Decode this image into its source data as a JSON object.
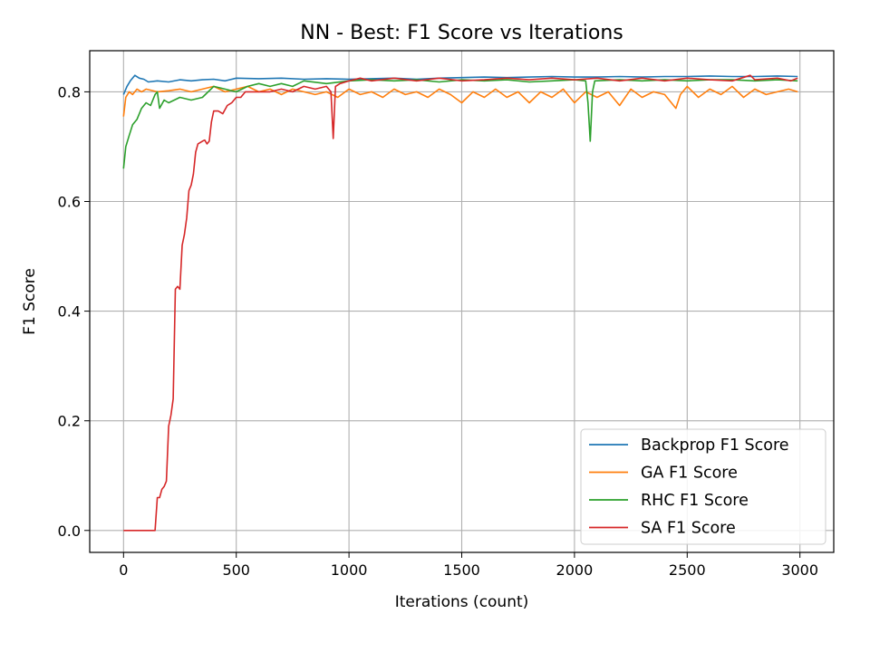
{
  "chart_data": {
    "type": "line",
    "title": "NN - Best: F1 Score vs Iterations",
    "xlabel": "Iterations (count)",
    "ylabel": "F1 Score",
    "xlim": [
      -150,
      3150
    ],
    "ylim": [
      -0.04,
      0.875
    ],
    "xticks": [
      0,
      500,
      1000,
      1500,
      2000,
      2500,
      3000
    ],
    "yticks": [
      0.0,
      0.2,
      0.4,
      0.6,
      0.8
    ],
    "xtick_labels": [
      "0",
      "500",
      "1000",
      "1500",
      "2000",
      "2500",
      "3000"
    ],
    "ytick_labels": [
      "0.0",
      "0.2",
      "0.4",
      "0.6",
      "0.8"
    ],
    "grid": true,
    "legend_position": "lower-right",
    "series": [
      {
        "name": "Backprop F1 Score",
        "color": "#1f77b4",
        "points": [
          [
            0,
            0.795
          ],
          [
            15,
            0.81
          ],
          [
            30,
            0.82
          ],
          [
            50,
            0.83
          ],
          [
            70,
            0.825
          ],
          [
            90,
            0.823
          ],
          [
            110,
            0.818
          ],
          [
            150,
            0.82
          ],
          [
            200,
            0.818
          ],
          [
            250,
            0.822
          ],
          [
            300,
            0.82
          ],
          [
            350,
            0.822
          ],
          [
            400,
            0.823
          ],
          [
            450,
            0.82
          ],
          [
            500,
            0.825
          ],
          [
            600,
            0.824
          ],
          [
            700,
            0.825
          ],
          [
            800,
            0.823
          ],
          [
            900,
            0.824
          ],
          [
            1000,
            0.823
          ],
          [
            1100,
            0.824
          ],
          [
            1200,
            0.825
          ],
          [
            1300,
            0.823
          ],
          [
            1400,
            0.825
          ],
          [
            1500,
            0.826
          ],
          [
            1600,
            0.827
          ],
          [
            1700,
            0.826
          ],
          [
            1800,
            0.827
          ],
          [
            1900,
            0.828
          ],
          [
            2000,
            0.827
          ],
          [
            2100,
            0.827
          ],
          [
            2200,
            0.828
          ],
          [
            2300,
            0.827
          ],
          [
            2400,
            0.828
          ],
          [
            2500,
            0.828
          ],
          [
            2600,
            0.829
          ],
          [
            2700,
            0.828
          ],
          [
            2800,
            0.828
          ],
          [
            2900,
            0.829
          ],
          [
            2990,
            0.828
          ]
        ]
      },
      {
        "name": "GA F1 Score",
        "color": "#ff7f0e",
        "points": [
          [
            0,
            0.755
          ],
          [
            10,
            0.79
          ],
          [
            25,
            0.8
          ],
          [
            40,
            0.795
          ],
          [
            60,
            0.805
          ],
          [
            80,
            0.8
          ],
          [
            100,
            0.805
          ],
          [
            150,
            0.8
          ],
          [
            200,
            0.802
          ],
          [
            250,
            0.805
          ],
          [
            300,
            0.8
          ],
          [
            350,
            0.805
          ],
          [
            400,
            0.81
          ],
          [
            450,
            0.8
          ],
          [
            500,
            0.805
          ],
          [
            550,
            0.81
          ],
          [
            600,
            0.8
          ],
          [
            650,
            0.805
          ],
          [
            700,
            0.795
          ],
          [
            750,
            0.805
          ],
          [
            800,
            0.8
          ],
          [
            850,
            0.795
          ],
          [
            900,
            0.8
          ],
          [
            950,
            0.79
          ],
          [
            1000,
            0.805
          ],
          [
            1050,
            0.795
          ],
          [
            1100,
            0.8
          ],
          [
            1150,
            0.79
          ],
          [
            1200,
            0.805
          ],
          [
            1250,
            0.795
          ],
          [
            1300,
            0.8
          ],
          [
            1350,
            0.79
          ],
          [
            1400,
            0.805
          ],
          [
            1450,
            0.795
          ],
          [
            1500,
            0.78
          ],
          [
            1550,
            0.8
          ],
          [
            1600,
            0.79
          ],
          [
            1650,
            0.805
          ],
          [
            1700,
            0.79
          ],
          [
            1750,
            0.8
          ],
          [
            1800,
            0.78
          ],
          [
            1850,
            0.8
          ],
          [
            1900,
            0.79
          ],
          [
            1950,
            0.805
          ],
          [
            2000,
            0.78
          ],
          [
            2050,
            0.8
          ],
          [
            2100,
            0.79
          ],
          [
            2150,
            0.8
          ],
          [
            2200,
            0.775
          ],
          [
            2250,
            0.805
          ],
          [
            2300,
            0.79
          ],
          [
            2350,
            0.8
          ],
          [
            2400,
            0.795
          ],
          [
            2450,
            0.77
          ],
          [
            2470,
            0.795
          ],
          [
            2500,
            0.81
          ],
          [
            2550,
            0.79
          ],
          [
            2600,
            0.805
          ],
          [
            2650,
            0.795
          ],
          [
            2700,
            0.81
          ],
          [
            2750,
            0.79
          ],
          [
            2800,
            0.805
          ],
          [
            2850,
            0.795
          ],
          [
            2900,
            0.8
          ],
          [
            2950,
            0.805
          ],
          [
            2990,
            0.8
          ]
        ]
      },
      {
        "name": "RHC F1 Score",
        "color": "#2ca02c",
        "points": [
          [
            0,
            0.66
          ],
          [
            10,
            0.7
          ],
          [
            25,
            0.72
          ],
          [
            40,
            0.74
          ],
          [
            60,
            0.75
          ],
          [
            80,
            0.77
          ],
          [
            100,
            0.78
          ],
          [
            120,
            0.775
          ],
          [
            140,
            0.795
          ],
          [
            150,
            0.8
          ],
          [
            160,
            0.77
          ],
          [
            180,
            0.785
          ],
          [
            200,
            0.78
          ],
          [
            250,
            0.79
          ],
          [
            300,
            0.785
          ],
          [
            350,
            0.79
          ],
          [
            400,
            0.81
          ],
          [
            450,
            0.805
          ],
          [
            500,
            0.8
          ],
          [
            550,
            0.81
          ],
          [
            600,
            0.815
          ],
          [
            650,
            0.81
          ],
          [
            700,
            0.815
          ],
          [
            750,
            0.81
          ],
          [
            800,
            0.82
          ],
          [
            900,
            0.815
          ],
          [
            1000,
            0.82
          ],
          [
            1100,
            0.822
          ],
          [
            1200,
            0.82
          ],
          [
            1300,
            0.822
          ],
          [
            1400,
            0.818
          ],
          [
            1500,
            0.822
          ],
          [
            1600,
            0.82
          ],
          [
            1700,
            0.822
          ],
          [
            1800,
            0.818
          ],
          [
            1900,
            0.82
          ],
          [
            2000,
            0.822
          ],
          [
            2050,
            0.82
          ],
          [
            2060,
            0.78
          ],
          [
            2070,
            0.71
          ],
          [
            2080,
            0.8
          ],
          [
            2090,
            0.82
          ],
          [
            2200,
            0.822
          ],
          [
            2300,
            0.82
          ],
          [
            2400,
            0.822
          ],
          [
            2500,
            0.82
          ],
          [
            2600,
            0.822
          ],
          [
            2700,
            0.822
          ],
          [
            2800,
            0.82
          ],
          [
            2900,
            0.822
          ],
          [
            2990,
            0.82
          ]
        ]
      },
      {
        "name": "SA F1 Score",
        "color": "#d62728",
        "points": [
          [
            0,
            0.0
          ],
          [
            50,
            0.0
          ],
          [
            100,
            0.0
          ],
          [
            140,
            0.0
          ],
          [
            150,
            0.06
          ],
          [
            160,
            0.06
          ],
          [
            170,
            0.075
          ],
          [
            180,
            0.08
          ],
          [
            190,
            0.09
          ],
          [
            200,
            0.19
          ],
          [
            210,
            0.21
          ],
          [
            220,
            0.24
          ],
          [
            230,
            0.44
          ],
          [
            240,
            0.445
          ],
          [
            250,
            0.44
          ],
          [
            260,
            0.52
          ],
          [
            270,
            0.54
          ],
          [
            280,
            0.57
          ],
          [
            290,
            0.62
          ],
          [
            300,
            0.63
          ],
          [
            310,
            0.65
          ],
          [
            320,
            0.69
          ],
          [
            330,
            0.705
          ],
          [
            350,
            0.71
          ],
          [
            360,
            0.712
          ],
          [
            370,
            0.705
          ],
          [
            380,
            0.71
          ],
          [
            390,
            0.745
          ],
          [
            400,
            0.765
          ],
          [
            420,
            0.765
          ],
          [
            440,
            0.76
          ],
          [
            460,
            0.775
          ],
          [
            480,
            0.78
          ],
          [
            500,
            0.79
          ],
          [
            520,
            0.79
          ],
          [
            540,
            0.8
          ],
          [
            560,
            0.8
          ],
          [
            600,
            0.8
          ],
          [
            650,
            0.8
          ],
          [
            700,
            0.805
          ],
          [
            750,
            0.8
          ],
          [
            800,
            0.81
          ],
          [
            850,
            0.805
          ],
          [
            900,
            0.81
          ],
          [
            920,
            0.8
          ],
          [
            930,
            0.715
          ],
          [
            940,
            0.81
          ],
          [
            960,
            0.815
          ],
          [
            1000,
            0.82
          ],
          [
            1050,
            0.825
          ],
          [
            1100,
            0.82
          ],
          [
            1200,
            0.825
          ],
          [
            1300,
            0.82
          ],
          [
            1400,
            0.825
          ],
          [
            1500,
            0.82
          ],
          [
            1600,
            0.822
          ],
          [
            1700,
            0.825
          ],
          [
            1800,
            0.822
          ],
          [
            1900,
            0.825
          ],
          [
            2000,
            0.822
          ],
          [
            2100,
            0.825
          ],
          [
            2200,
            0.82
          ],
          [
            2300,
            0.825
          ],
          [
            2400,
            0.82
          ],
          [
            2500,
            0.825
          ],
          [
            2600,
            0.822
          ],
          [
            2700,
            0.82
          ],
          [
            2780,
            0.83
          ],
          [
            2800,
            0.822
          ],
          [
            2900,
            0.825
          ],
          [
            2960,
            0.82
          ],
          [
            2990,
            0.825
          ]
        ]
      }
    ]
  }
}
